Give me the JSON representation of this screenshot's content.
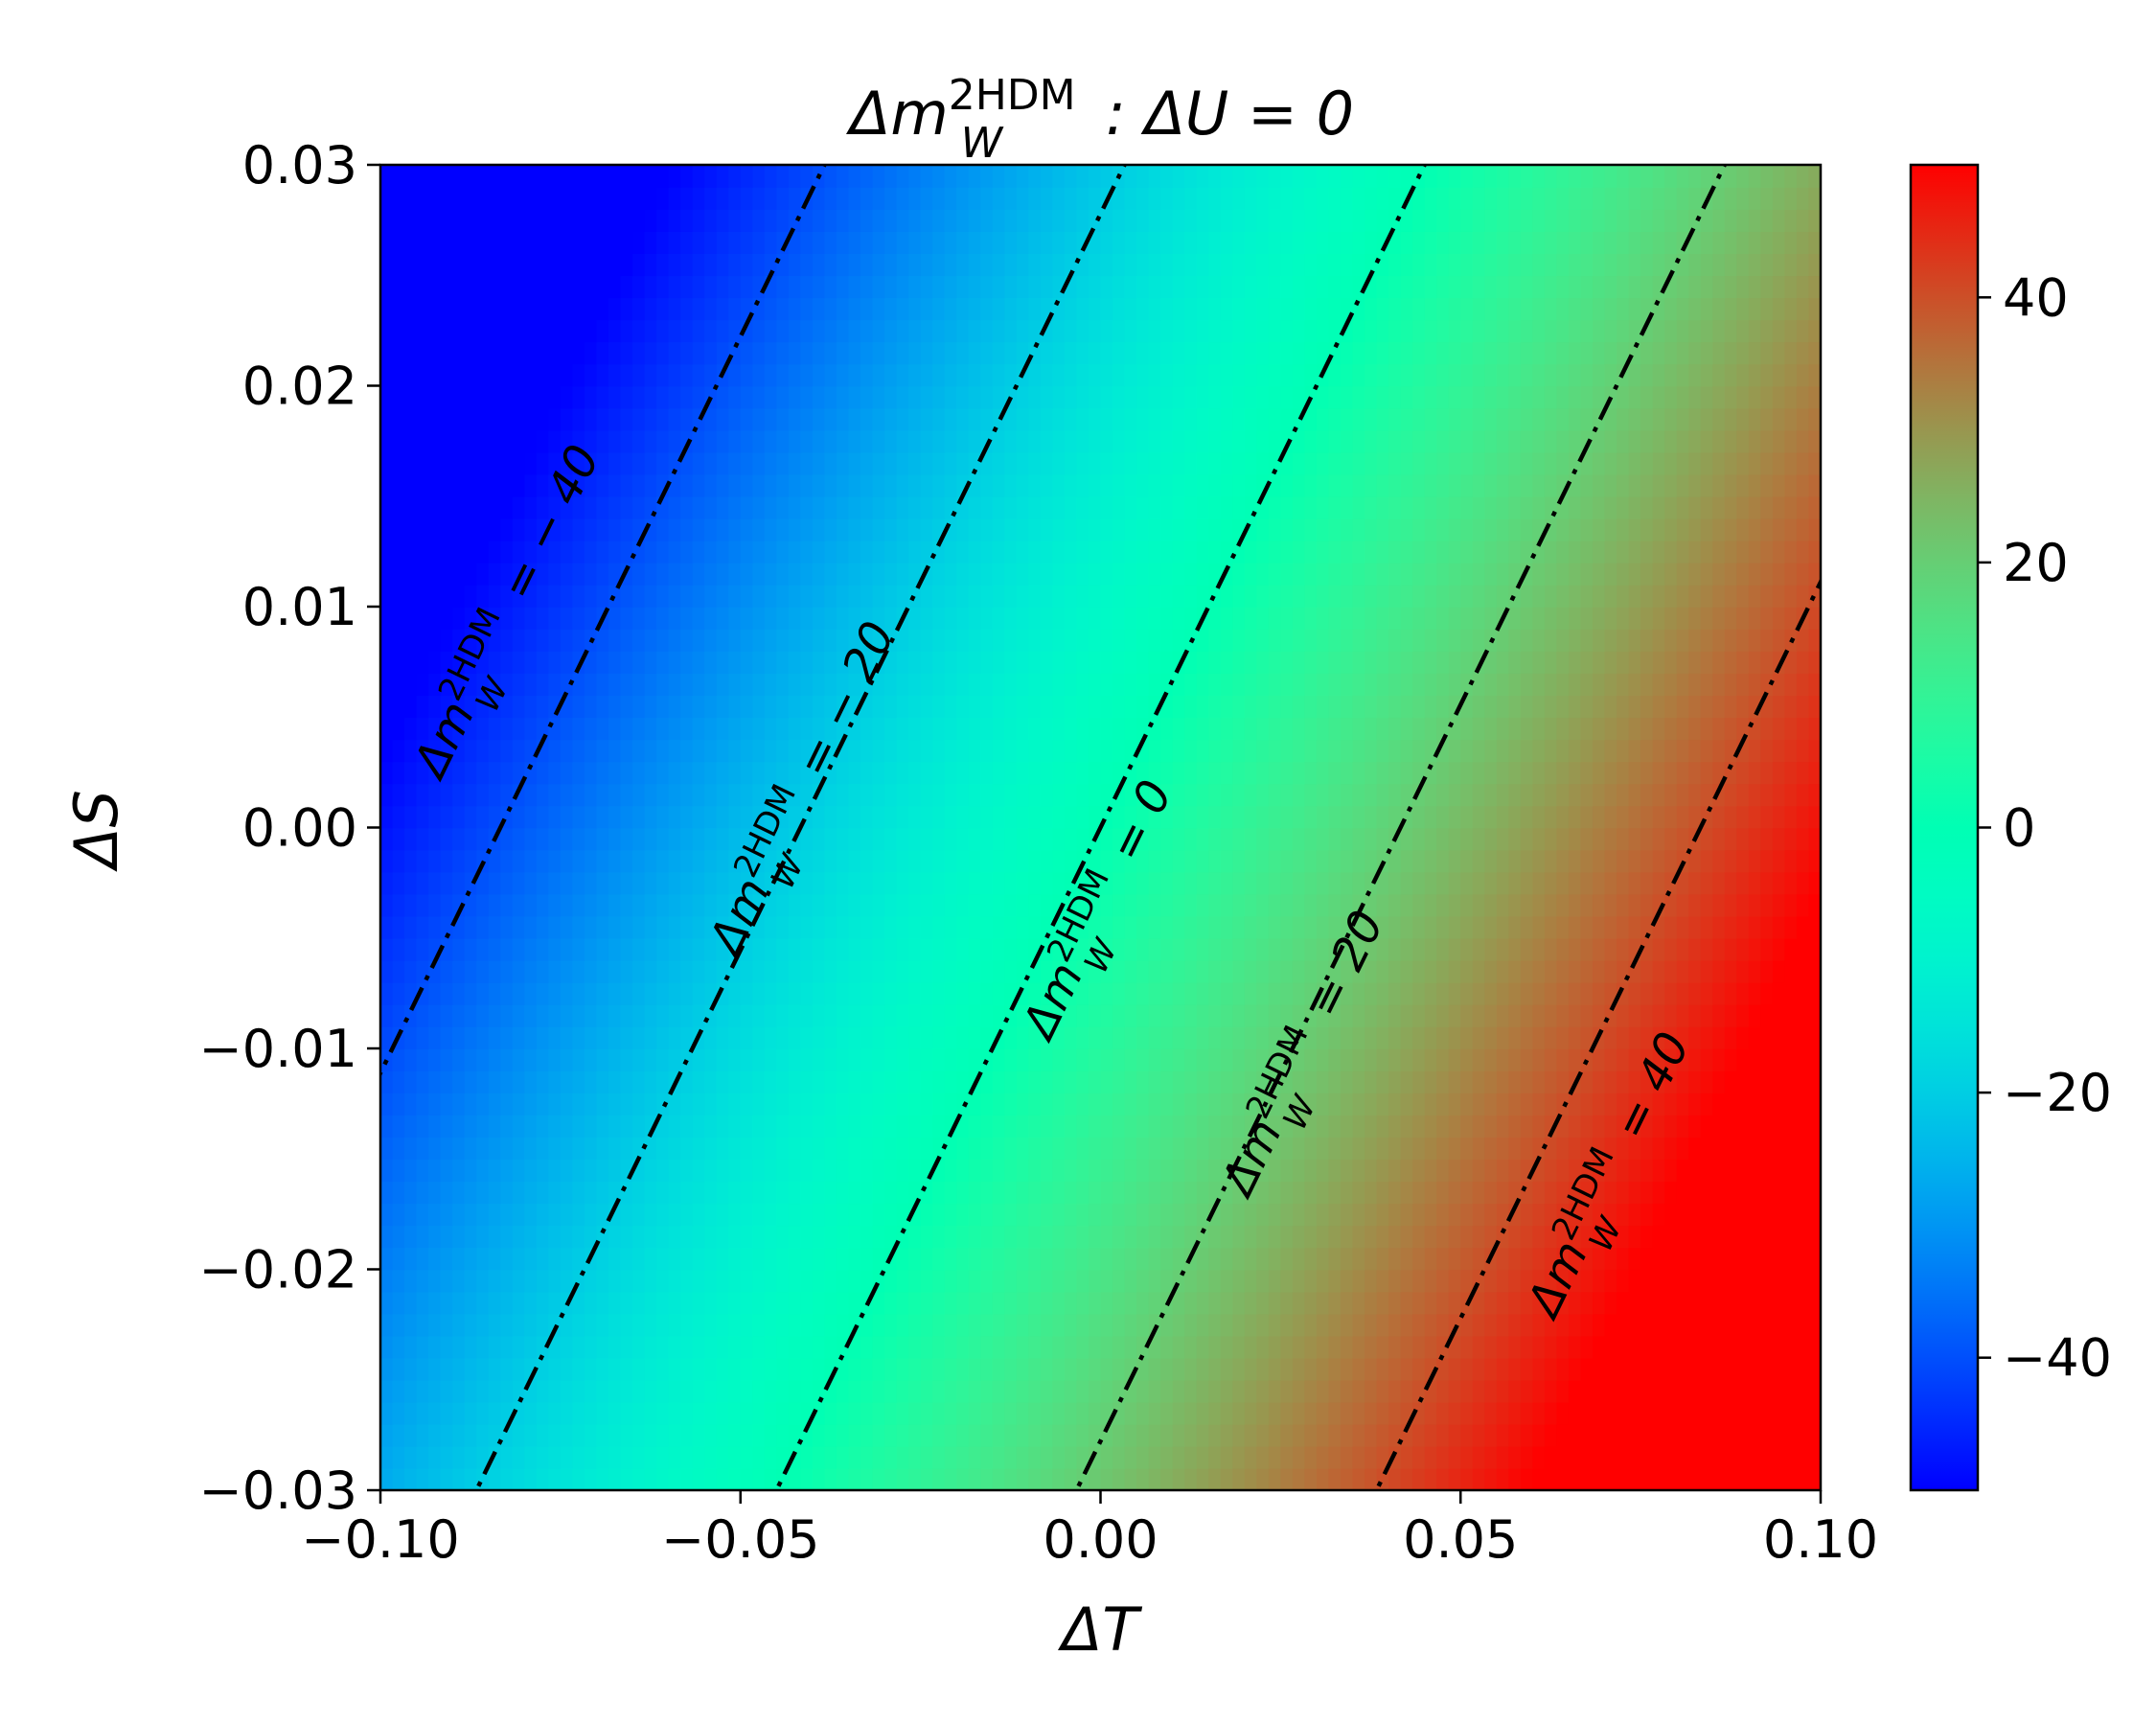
{
  "chart_data": {
    "type": "heatmap",
    "title": {
      "prefix": "Δ",
      "var": "m",
      "sup": "2HDM",
      "sub": "W",
      "suffix": " : ΔU = 0"
    },
    "xlabel": "ΔT",
    "ylabel": "ΔS",
    "xlim": [
      -0.1,
      0.1
    ],
    "ylim": [
      -0.03,
      0.03
    ],
    "x_ticks": [
      -0.1,
      -0.05,
      0.0,
      0.05,
      0.1
    ],
    "x_tick_labels": [
      "−0.10",
      "−0.05",
      "0.00",
      "0.05",
      "0.10"
    ],
    "y_ticks": [
      -0.03,
      -0.02,
      -0.01,
      0.0,
      0.01,
      0.02,
      0.03
    ],
    "y_tick_labels": [
      "−0.03",
      "−0.02",
      "−0.01",
      "0.00",
      "0.01",
      "0.02",
      "0.03"
    ],
    "colorbar": {
      "colormap": "rainbow",
      "range": [
        -50,
        50
      ],
      "ticks": [
        -40,
        -20,
        0,
        20,
        40
      ],
      "tick_labels": [
        "−40",
        "−20",
        "0",
        "20",
        "40"
      ]
    },
    "field": {
      "description_of_model": "linear",
      "dT_coeff": 480,
      "dS_coeff": -720,
      "offset": 0
    },
    "contours": [
      {
        "level": -40,
        "label_text": "= − 40",
        "label_at": {
          "dT": -0.0805,
          "dS": 0.0095
        }
      },
      {
        "level": -20,
        "label_text": "= − 20",
        "label_at": {
          "dT": -0.0395,
          "dS": 0.0015
        }
      },
      {
        "level": 0,
        "label_text": "= 0",
        "label_at": {
          "dT": 0.0015,
          "dS": -0.004
        }
      },
      {
        "level": 20,
        "label_text": "= 20",
        "label_at": {
          "dT": 0.03,
          "dS": -0.0105
        }
      },
      {
        "level": 40,
        "label_text": "= 40",
        "label_at": {
          "dT": 0.0725,
          "dS": -0.016
        }
      }
    ],
    "contour_style": {
      "color": "#000000",
      "dash": "dash-dot"
    },
    "contour_label_var": {
      "prefix": "Δ",
      "var": "m",
      "sup": "2HDM",
      "sub": "W"
    }
  }
}
